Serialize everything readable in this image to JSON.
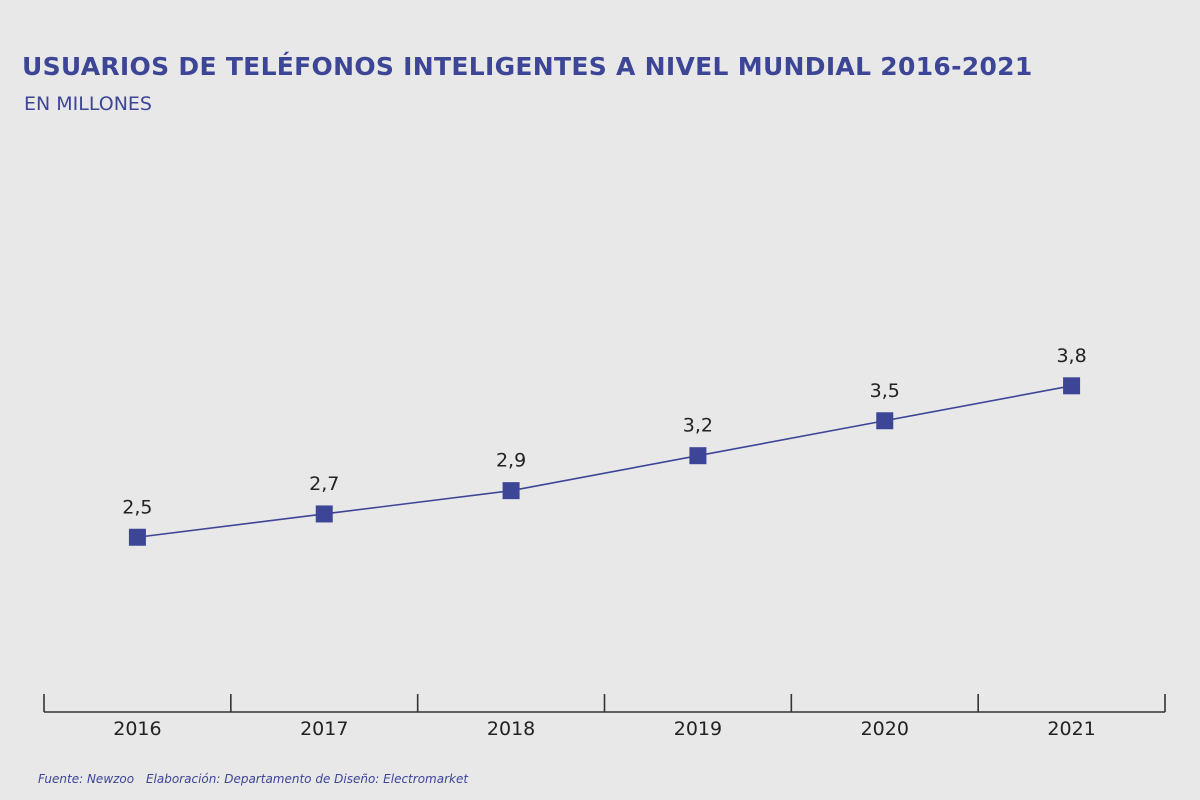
{
  "chart_data": {
    "type": "line",
    "title": "USUARIOS DE TELÉFONOS INTELIGENTES A NIVEL MUNDIAL 2016-2021",
    "subtitle": "EN MILLONES",
    "categories": [
      "2016",
      "2017",
      "2018",
      "2019",
      "2020",
      "2021"
    ],
    "values": [
      2.5,
      2.7,
      2.9,
      3.2,
      3.5,
      3.8
    ],
    "value_labels": [
      "2,5",
      "2,7",
      "2,9",
      "3,2",
      "3,5",
      "3,8"
    ],
    "xlabel": "",
    "ylabel": "",
    "ylim": [
      1.0,
      5.0
    ],
    "grid": false,
    "legend": "none",
    "marker": "square",
    "colors": {
      "series": "#3d4596",
      "text": "#222222",
      "accent": "#3d4596",
      "background": "#e8e8e8"
    }
  },
  "footer": {
    "source": "Fuente: Newzoo",
    "credits": "Elaboración: Departamento de Diseño: Electromarket"
  }
}
